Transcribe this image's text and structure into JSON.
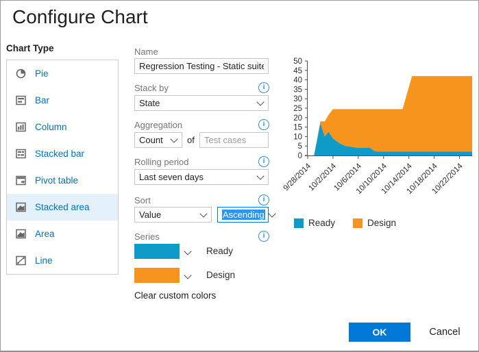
{
  "dialog": {
    "title": "Configure Chart"
  },
  "chart_type": {
    "label": "Chart Type",
    "items": [
      {
        "label": "Pie",
        "icon": "pie-icon",
        "selected": false
      },
      {
        "label": "Bar",
        "icon": "bar-icon",
        "selected": false
      },
      {
        "label": "Column",
        "icon": "column-icon",
        "selected": false
      },
      {
        "label": "Stacked bar",
        "icon": "stacked-bar-icon",
        "selected": false
      },
      {
        "label": "Pivot table",
        "icon": "pivot-table-icon",
        "selected": false
      },
      {
        "label": "Stacked area",
        "icon": "stacked-area-icon",
        "selected": true
      },
      {
        "label": "Area",
        "icon": "area-icon",
        "selected": false
      },
      {
        "label": "Line",
        "icon": "line-icon",
        "selected": false
      }
    ]
  },
  "form": {
    "name": {
      "label": "Name",
      "value": "Regression Testing - Static suite - Ch"
    },
    "stack_by": {
      "label": "Stack by",
      "value": "State"
    },
    "aggregation": {
      "label": "Aggregation",
      "value": "Count",
      "of_label": "of",
      "field_value": "Test cases"
    },
    "rolling_period": {
      "label": "Rolling period",
      "value": "Last seven days"
    },
    "sort": {
      "label": "Sort",
      "field_value": "Value",
      "direction_value": "Ascending"
    },
    "series": {
      "label": "Series",
      "items": [
        {
          "name": "Ready",
          "color": "#0f9bc8"
        },
        {
          "name": "Design",
          "color": "#f7941e"
        }
      ],
      "clear_label": "Clear custom colors"
    }
  },
  "buttons": {
    "ok": "OK",
    "cancel": "Cancel"
  },
  "colors": {
    "accent": "#0078d7",
    "link_blue": "#0072c6",
    "selected_row_bg": "#e4f1fb",
    "text_selection": "#2e95ec",
    "series_ready": "#0f9bc8",
    "series_design": "#f7941e"
  },
  "chart_data": {
    "type": "area",
    "stacked": true,
    "x_unit": "days since 9/28/2014",
    "x": [
      0,
      1,
      1.5,
      2,
      2.7,
      3.3,
      4,
      5,
      6,
      7,
      8,
      9,
      9.7,
      10.5,
      11,
      15,
      16.5,
      26
    ],
    "series": [
      {
        "name": "Ready",
        "color": "#0f9bc8",
        "values": [
          0,
          0,
          8,
          17,
          10,
          12.5,
          9,
          6.5,
          5,
          4.5,
          4,
          4,
          4.2,
          2.5,
          2,
          2,
          2,
          2
        ]
      },
      {
        "name": "Design",
        "color": "#f7941e",
        "values": [
          0,
          0,
          1,
          1,
          8,
          9,
          15.5,
          18,
          19.5,
          20,
          20.5,
          20.5,
          20.3,
          22,
          22.5,
          22.5,
          40,
          40
        ]
      }
    ],
    "ylim": [
      0,
      50
    ],
    "y_tick_step": 5,
    "x_range_days": [
      0,
      26
    ],
    "x_tick_days": [
      0,
      4,
      8,
      12,
      16,
      20,
      24
    ],
    "x_tick_labels": [
      "9/28/2014",
      "10/2/2014",
      "10/6/2014",
      "10/10/2014",
      "10/14/2014",
      "10/18/2014",
      "10/22/2014"
    ],
    "legend": [
      "Ready",
      "Design"
    ],
    "legend_position": "bottom",
    "grid": false
  }
}
